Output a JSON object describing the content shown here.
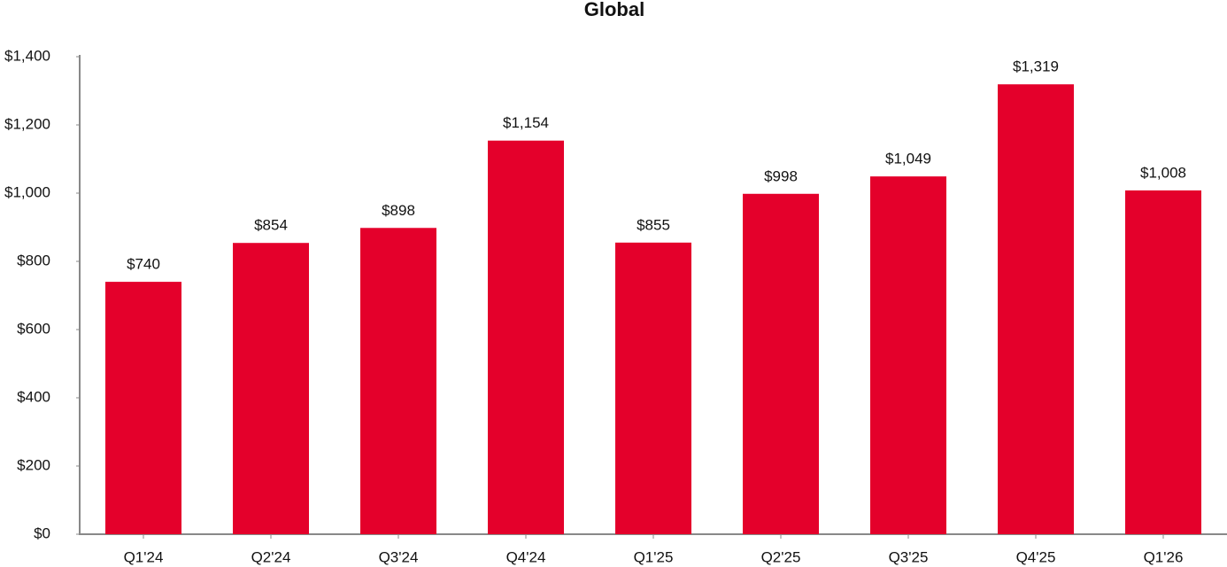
{
  "chart_data": {
    "type": "bar",
    "title": "Global",
    "categories": [
      "Q1'24",
      "Q2'24",
      "Q3'24",
      "Q4'24",
      "Q1'25",
      "Q2'25",
      "Q3'25",
      "Q4'25",
      "Q1'26"
    ],
    "values": [
      740,
      854,
      898,
      1154,
      855,
      998,
      1049,
      1319,
      1008
    ],
    "value_labels": [
      "$740",
      "$854",
      "$898",
      "$1,154",
      "$855",
      "$998",
      "$1,049",
      "$1,319",
      "$1,008"
    ],
    "color": "#e4002b",
    "ylim": [
      0,
      1400
    ],
    "yticks": [
      {
        "value": 0,
        "label": "$0"
      },
      {
        "value": 200,
        "label": "$200"
      },
      {
        "value": 400,
        "label": "$400"
      },
      {
        "value": 600,
        "label": "$600"
      },
      {
        "value": 800,
        "label": "$800"
      },
      {
        "value": 1000,
        "label": "$1,000"
      },
      {
        "value": 1200,
        "label": "$1,200"
      },
      {
        "value": 1400,
        "label": "$1,400"
      }
    ],
    "grid": false
  }
}
